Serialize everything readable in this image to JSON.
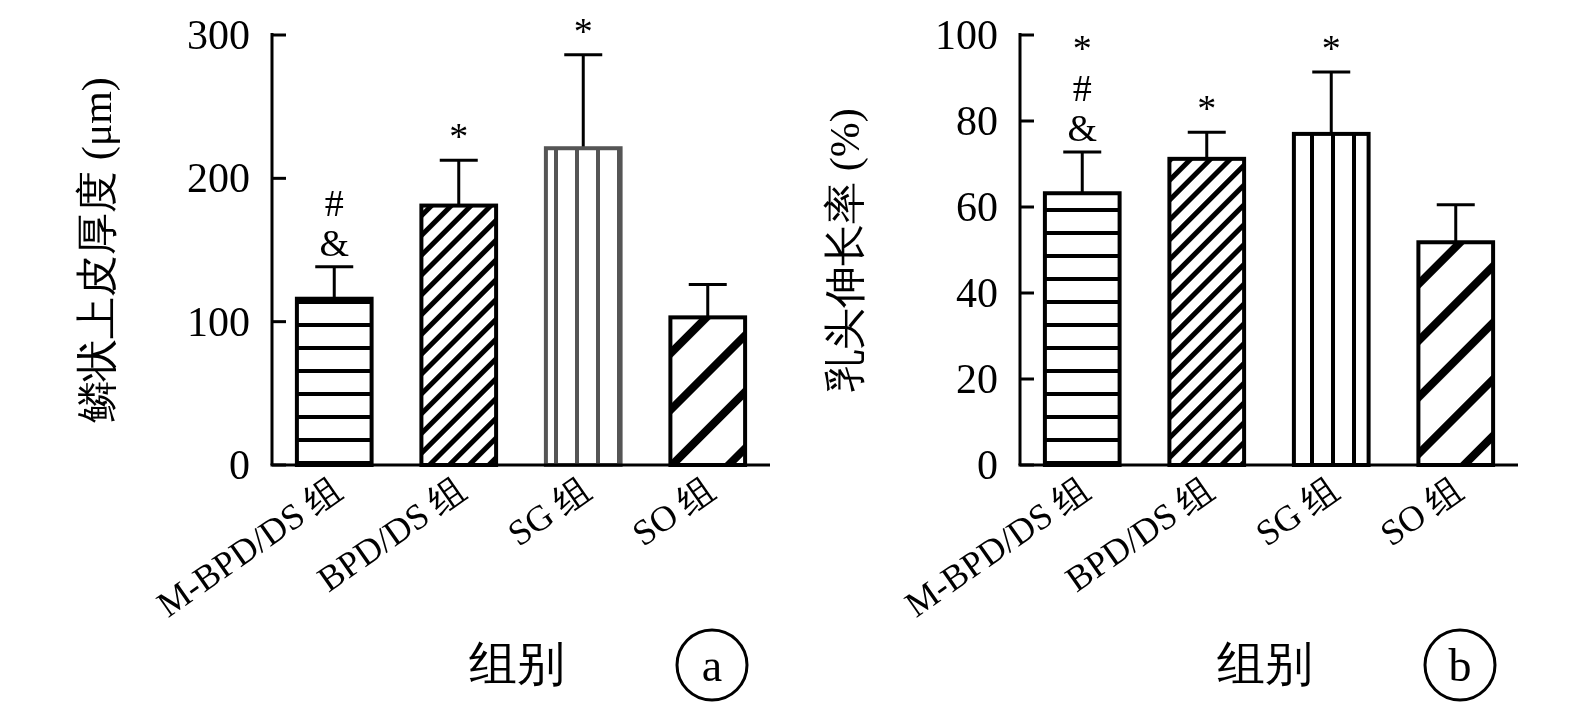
{
  "chart_data": [
    {
      "type": "bar",
      "ylabel": "鳞状上皮厚度 (μm)",
      "xlabel": "组别",
      "categories": [
        "M-BPD/DS 组",
        "BPD/DS 组",
        "SG 组",
        "SO 组"
      ],
      "values": [
        116,
        181,
        221,
        103
      ],
      "errors": [
        [
          116,
          138.4
        ],
        [
          181,
          212.7
        ],
        [
          221,
          286.2
        ],
        [
          103,
          126
        ]
      ],
      "colors": [
        "#000000",
        "#000000",
        "#555555",
        "#000000"
      ],
      "ylim": [
        0,
        300
      ],
      "yticks": [
        0,
        100,
        200,
        300
      ],
      "grid": false,
      "annotations": [
        "#",
        "&",
        "*",
        "*",
        "a"
      ]
    },
    {
      "type": "bar",
      "ylabel": "乳头伸长率 (%)",
      "xlabel": "组别",
      "categories": [
        "M-BPD/DS 组",
        "BPD/DS 组",
        "SG 组",
        "SO 组"
      ],
      "values": [
        63.2,
        71.2,
        77,
        51.8
      ],
      "errors": [
        [
          63.2,
          72.8
        ],
        [
          71.2,
          77.4
        ],
        [
          77,
          91.4
        ],
        [
          51.8,
          60.5
        ]
      ],
      "colors": [
        "#000000",
        "#000000",
        "#000000",
        "#000000"
      ],
      "ylim": [
        0,
        100
      ],
      "yticks": [
        0,
        20,
        40,
        60,
        80,
        100
      ],
      "grid": false,
      "annotations": [
        "*",
        "#",
        "&",
        "*",
        "*",
        "b"
      ]
    }
  ]
}
